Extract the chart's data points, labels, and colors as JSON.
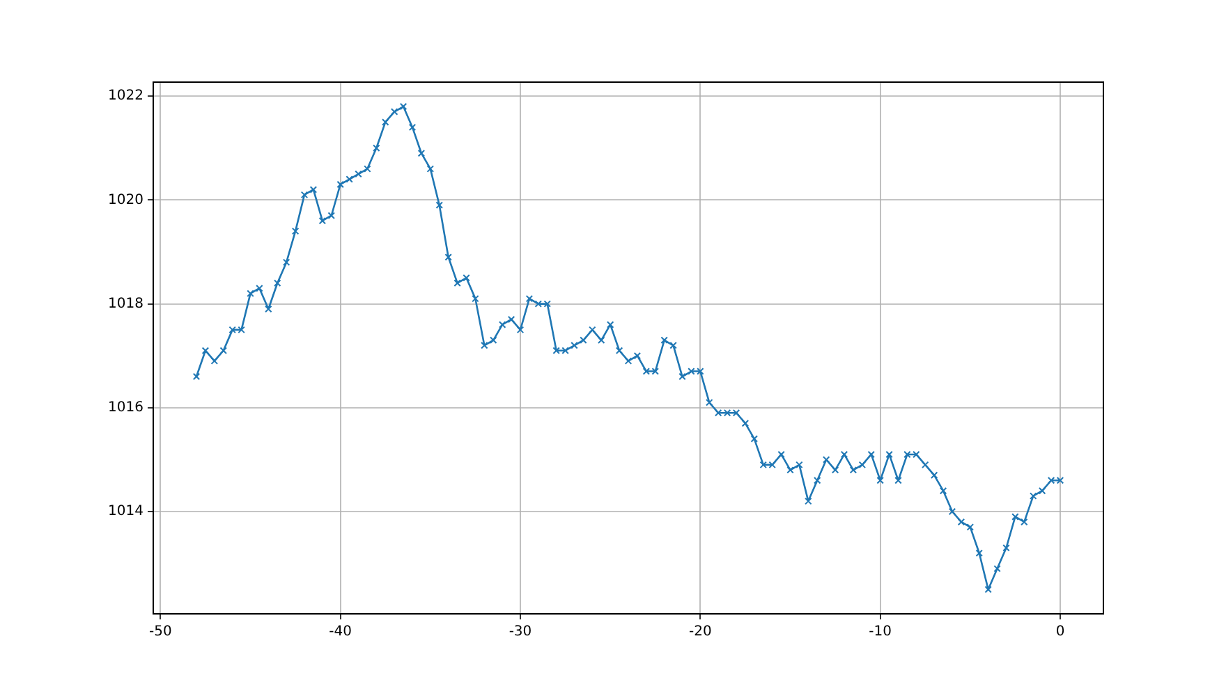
{
  "chart_data": {
    "type": "line",
    "x": [
      -48,
      -47.5,
      -47,
      -46.5,
      -46,
      -45.5,
      -45,
      -44.5,
      -44,
      -43.5,
      -43,
      -42.5,
      -42,
      -41.5,
      -41,
      -40.5,
      -40,
      -39.5,
      -39,
      -38.5,
      -38,
      -37.5,
      -37,
      -36.5,
      -36,
      -35.5,
      -35,
      -34.5,
      -34,
      -33.5,
      -33,
      -32.5,
      -32,
      -31.5,
      -31,
      -30.5,
      -30,
      -29.5,
      -29,
      -28.5,
      -28,
      -27.5,
      -27,
      -26.5,
      -26,
      -25.5,
      -25,
      -24.5,
      -24,
      -23.5,
      -23,
      -22.5,
      -22,
      -21.5,
      -21,
      -20.5,
      -20,
      -19.5,
      -19,
      -18.5,
      -18,
      -17.5,
      -17,
      -16.5,
      -16,
      -15.5,
      -15,
      -14.5,
      -14,
      -13.5,
      -13,
      -12.5,
      -12,
      -11.5,
      -11,
      -10.5,
      -10,
      -9.5,
      -9,
      -8.5,
      -8,
      -7.5,
      -7,
      -6.5,
      -6,
      -5.5,
      -5,
      -4.5,
      -4,
      -3.5,
      -3,
      -2.5,
      -2,
      -1.5,
      -1,
      -0.5,
      0
    ],
    "series": [
      {
        "color": "#1f77b4",
        "values": [
          1016.6,
          1017.1,
          1016.9,
          1017.1,
          1017.5,
          1017.5,
          1018.2,
          1018.3,
          1017.9,
          1018.4,
          1018.8,
          1019.4,
          1020.1,
          1020.2,
          1019.6,
          1019.7,
          1020.3,
          1020.4,
          1020.5,
          1020.6,
          1021.0,
          1021.5,
          1021.7,
          1021.8,
          1021.4,
          1020.9,
          1020.6,
          1019.9,
          1018.9,
          1018.4,
          1018.5,
          1018.1,
          1017.2,
          1017.3,
          1017.6,
          1017.7,
          1017.5,
          1018.1,
          1018.0,
          1018.0,
          1017.1,
          1017.1,
          1017.2,
          1017.3,
          1017.5,
          1017.3,
          1017.6,
          1017.1,
          1016.9,
          1017.0,
          1016.7,
          1016.7,
          1017.3,
          1017.2,
          1016.6,
          1016.7,
          1016.7,
          1016.1,
          1015.9,
          1015.9,
          1015.9,
          1015.7,
          1015.4,
          1014.9,
          1014.9,
          1015.1,
          1014.8,
          1014.9,
          1014.2,
          1014.6,
          1015.0,
          1014.8,
          1015.1,
          1014.8,
          1014.9,
          1015.1,
          1014.6,
          1015.1,
          1014.6,
          1015.1,
          1015.1,
          1014.9,
          1014.7,
          1014.4,
          1014.0,
          1013.8,
          1013.7,
          1013.2,
          1012.5,
          1012.9,
          1013.3,
          1013.9,
          1013.8,
          1014.3,
          1014.4,
          1014.6,
          1014.6
        ]
      }
    ],
    "xlim": [
      -50.4,
      2.4
    ],
    "xticks": [
      -50,
      -40,
      -30,
      -20,
      -10,
      0
    ],
    "ylim": [
      1012.03,
      1022.27
    ],
    "yticks": [
      1014,
      1016,
      1018,
      1020,
      1022
    ],
    "grid": true,
    "marker": "cross",
    "line_style": "solid"
  }
}
